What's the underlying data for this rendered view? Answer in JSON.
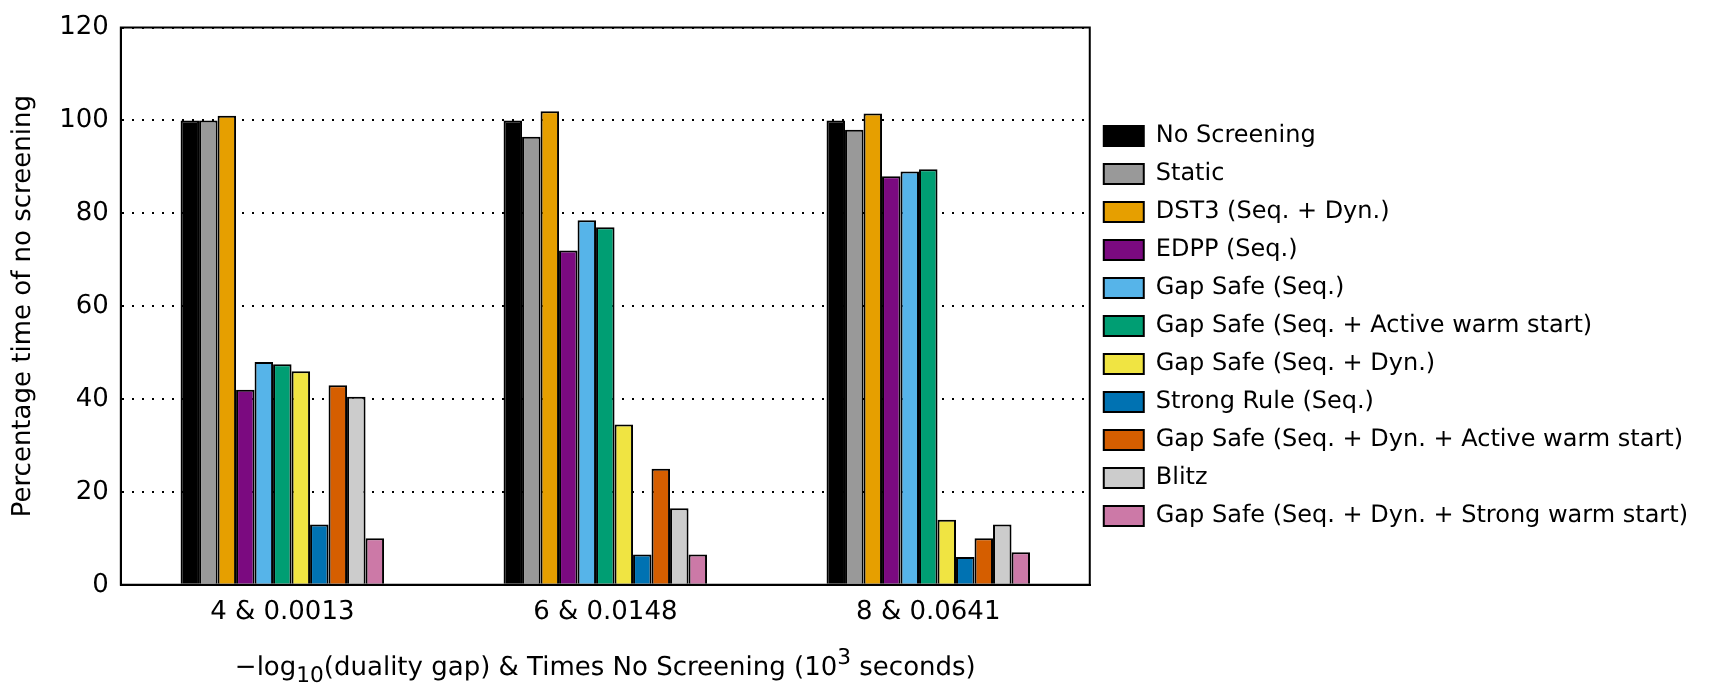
{
  "chart_data": {
    "type": "bar",
    "categories": [
      "4 & 0.0013",
      "6 & 0.0148",
      "8 & 0.0641"
    ],
    "xlabel": "−log$_{10}$(duality gap) & Times No Screening (10$^{3}$ seconds)",
    "ylabel": "Percentage time of no screening",
    "ylim": [
      0,
      120
    ],
    "yticks": [
      0,
      20,
      40,
      60,
      80,
      100,
      120
    ],
    "grid": "y",
    "legend": "right",
    "series": [
      {
        "name": "No Screening",
        "color": "#000000",
        "values": [
          100,
          100,
          100
        ]
      },
      {
        "name": "Static",
        "color": "#999999",
        "values": [
          100,
          96.5,
          98
        ]
      },
      {
        "name": "DST3 (Seq. + Dyn.)",
        "color": "#e69f00",
        "values": [
          101,
          102,
          101.5
        ]
      },
      {
        "name": "EDPP (Seq.)",
        "color": "#7b0a80",
        "values": [
          42,
          72,
          88
        ]
      },
      {
        "name": "Gap Safe (Seq.)",
        "color": "#56b4e9",
        "values": [
          48,
          78.5,
          89
        ]
      },
      {
        "name": "Gap Safe (Seq. + Active warm start)",
        "color": "#009e73",
        "values": [
          47.5,
          77,
          89.5
        ]
      },
      {
        "name": "Gap Safe (Seq. + Dyn.)",
        "color": "#f0e442",
        "values": [
          46,
          34.5,
          14
        ]
      },
      {
        "name": "Strong Rule (Seq.)",
        "color": "#0072b2",
        "values": [
          13,
          6.5,
          6
        ]
      },
      {
        "name": "Gap Safe (Seq. + Dyn. + Active warm start)",
        "color": "#d55e00",
        "values": [
          43,
          25,
          10
        ]
      },
      {
        "name": "Blitz",
        "color": "#cccccc",
        "values": [
          40.5,
          16.5,
          13
        ]
      },
      {
        "name": "Gap Safe (Seq. + Dyn. + Strong warm start)",
        "color": "#cc79a7",
        "values": [
          10,
          6.5,
          7
        ]
      }
    ]
  }
}
